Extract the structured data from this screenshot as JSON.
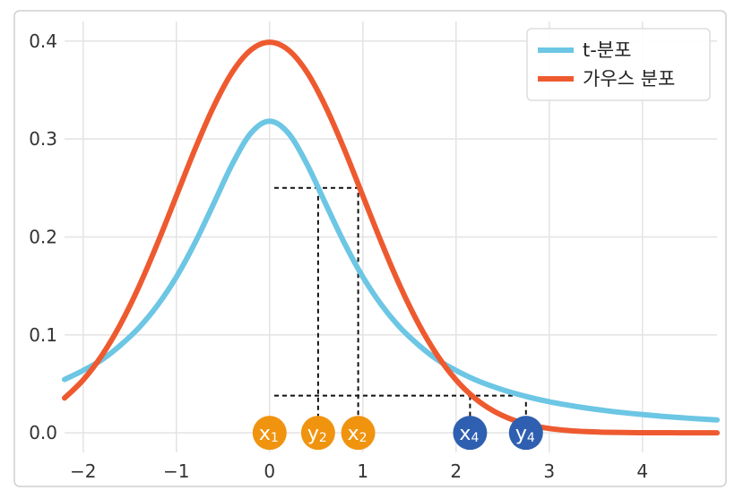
{
  "chart_data": {
    "type": "line",
    "xlim": [
      -2.2,
      4.8
    ],
    "ylim": [
      -0.02,
      0.42
    ],
    "xticks": [
      -2,
      -1,
      0,
      1,
      2,
      3,
      4
    ],
    "xtick_labels": [
      "−2",
      "−1",
      "0",
      "1",
      "2",
      "3",
      "4"
    ],
    "yticks": [
      0.0,
      0.1,
      0.2,
      0.3,
      0.4
    ],
    "ytick_labels": [
      "0.0",
      "0.1",
      "0.2",
      "0.3",
      "0.4"
    ],
    "grid": true,
    "legend_position": "top-right",
    "series": [
      {
        "name": "t-분포",
        "color": "#6cc6e4",
        "x": [
          -2.2,
          -2.0,
          -1.8,
          -1.6,
          -1.4,
          -1.2,
          -1.0,
          -0.8,
          -0.6,
          -0.4,
          -0.2,
          0.0,
          0.2,
          0.4,
          0.6,
          0.8,
          1.0,
          1.2,
          1.4,
          1.6,
          1.8,
          2.0,
          2.2,
          2.4,
          2.6,
          2.8,
          3.0,
          3.2,
          3.4,
          3.6,
          3.8,
          4.0,
          4.2,
          4.4,
          4.6,
          4.8
        ],
        "y": [
          0.0545,
          0.0637,
          0.0746,
          0.0895,
          0.1075,
          0.1306,
          0.1592,
          0.1941,
          0.234,
          0.2745,
          0.3061,
          0.3183,
          0.3061,
          0.2745,
          0.234,
          0.1941,
          0.1592,
          0.1306,
          0.1075,
          0.0895,
          0.0746,
          0.0637,
          0.0545,
          0.0471,
          0.041,
          0.036,
          0.0318,
          0.0283,
          0.0253,
          0.0227,
          0.0205,
          0.0187,
          0.017,
          0.0156,
          0.0143,
          0.0132
        ]
      },
      {
        "name": "가우스 분포",
        "color": "#ee5a2f",
        "x": [
          -2.2,
          -2.0,
          -1.8,
          -1.6,
          -1.4,
          -1.2,
          -1.0,
          -0.8,
          -0.6,
          -0.4,
          -0.2,
          0.0,
          0.2,
          0.4,
          0.6,
          0.8,
          1.0,
          1.2,
          1.4,
          1.6,
          1.8,
          2.0,
          2.2,
          2.4,
          2.6,
          2.8,
          3.0,
          3.2,
          3.4,
          3.6,
          3.8,
          4.0,
          4.2,
          4.4,
          4.6,
          4.8
        ],
        "y": [
          0.0355,
          0.054,
          0.079,
          0.1109,
          0.1497,
          0.1942,
          0.242,
          0.2897,
          0.3332,
          0.3683,
          0.391,
          0.3989,
          0.391,
          0.3683,
          0.3332,
          0.2897,
          0.242,
          0.1942,
          0.1497,
          0.1109,
          0.079,
          0.054,
          0.0355,
          0.0224,
          0.0136,
          0.0079,
          0.0044,
          0.0024,
          0.0012,
          0.0006,
          0.0003,
          0.0001,
          0.0001,
          0.0,
          0.0,
          0.0
        ]
      }
    ],
    "guides": [
      {
        "points": [
          [
            0.05,
            0.25
          ],
          [
            0.95,
            0.25
          ],
          [
            0.95,
            0.0
          ]
        ]
      },
      {
        "points": [
          [
            0.52,
            0.25
          ],
          [
            0.52,
            0.0
          ]
        ]
      },
      {
        "points": [
          [
            0.05,
            0.038
          ],
          [
            2.75,
            0.038
          ],
          [
            2.75,
            0.0
          ]
        ]
      },
      {
        "points": [
          [
            2.15,
            0.038
          ],
          [
            2.15,
            0.0
          ]
        ]
      }
    ],
    "markers": [
      {
        "label": "x",
        "sub": "1",
        "x": 0.0,
        "color": "#f0940f"
      },
      {
        "label": "y",
        "sub": "2",
        "x": 0.52,
        "color": "#f0940f"
      },
      {
        "label": "x",
        "sub": "2",
        "x": 0.95,
        "color": "#f0940f"
      },
      {
        "label": "x",
        "sub": "4",
        "x": 2.15,
        "color": "#2f5fb0"
      },
      {
        "label": "y",
        "sub": "4",
        "x": 2.75,
        "color": "#2f5fb0"
      }
    ]
  }
}
